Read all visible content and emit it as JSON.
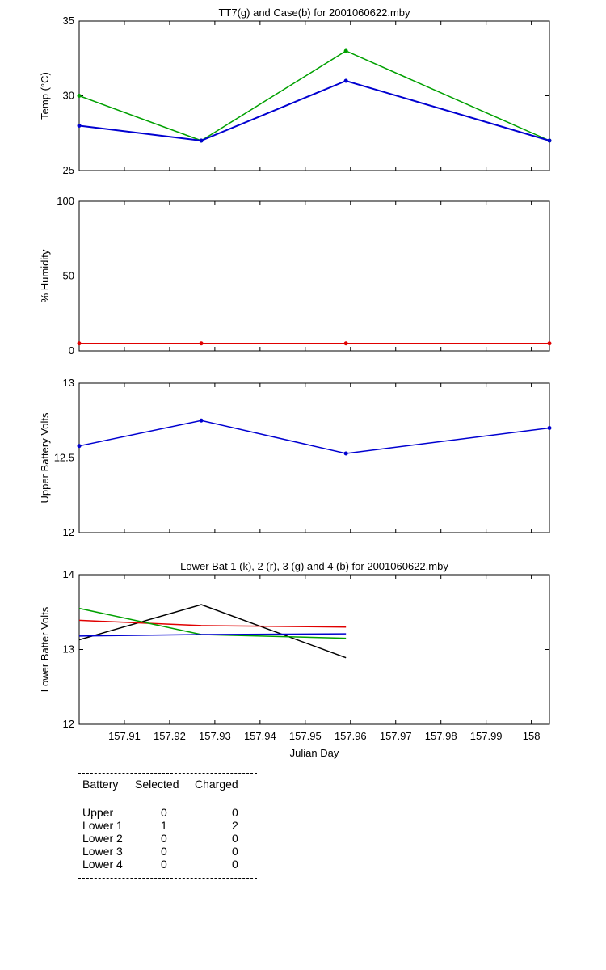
{
  "chart_data": [
    {
      "type": "line",
      "title": "TT7(g) and Case(b) for 2001060622.mby",
      "xlabel": "",
      "ylabel": "Temp  (°C)",
      "xlim": [
        157.9,
        158.004
      ],
      "ylim": [
        25,
        35
      ],
      "yticks": [
        "25",
        "30",
        "35"
      ],
      "x": [
        157.9,
        157.927,
        157.959,
        158.004
      ],
      "series": [
        {
          "color": "#00a000",
          "values": [
            30,
            27,
            33,
            27
          ]
        },
        {
          "color": "#0000d0",
          "values": [
            28,
            27,
            31,
            27
          ]
        }
      ]
    },
    {
      "type": "line",
      "title": "",
      "xlabel": "",
      "ylabel": "% Humidity",
      "xlim": [
        157.9,
        158.004
      ],
      "ylim": [
        0,
        100
      ],
      "yticks": [
        "0",
        "50",
        "100"
      ],
      "x": [
        157.9,
        157.927,
        157.959,
        158.004
      ],
      "series": [
        {
          "color": "#e00000",
          "values": [
            5,
            5,
            5,
            5
          ]
        }
      ]
    },
    {
      "type": "line",
      "title": "",
      "xlabel": "",
      "ylabel": "Upper Battery Volts",
      "xlim": [
        157.9,
        158.004
      ],
      "ylim": [
        12,
        13
      ],
      "yticks": [
        "12",
        "12.5",
        "13"
      ],
      "x": [
        157.9,
        157.927,
        157.959,
        158.004
      ],
      "series": [
        {
          "color": "#0000d0",
          "values": [
            12.58,
            12.75,
            12.53,
            12.7
          ]
        }
      ]
    },
    {
      "type": "line",
      "title": "Lower Bat 1 (k), 2 (r), 3 (g) and 4 (b) for 2001060622.mby",
      "xlabel": "Julian Day",
      "ylabel": "Lower Batter Volts",
      "xlim": [
        157.9,
        158.004
      ],
      "ylim": [
        12,
        14
      ],
      "yticks": [
        "12",
        "13",
        "14"
      ],
      "xticks": [
        "157.91",
        "157.92",
        "157.93",
        "157.94",
        "157.95",
        "157.96",
        "157.97",
        "157.98",
        "157.99",
        "158"
      ],
      "x": [
        157.9,
        157.927,
        157.959
      ],
      "series": [
        {
          "color": "#000000",
          "values": [
            13.13,
            13.6,
            12.89
          ]
        },
        {
          "color": "#e00000",
          "values": [
            13.39,
            13.32,
            13.3
          ]
        },
        {
          "color": "#00a000",
          "values": [
            13.55,
            13.2,
            13.15
          ]
        },
        {
          "color": "#0000d0",
          "values": [
            13.18,
            13.2,
            13.21
          ]
        }
      ]
    }
  ],
  "battery_table": {
    "headers": [
      "Battery",
      "Selected",
      "Charged"
    ],
    "rows": [
      {
        "battery": "Upper",
        "selected": "0",
        "charged": "0"
      },
      {
        "battery": "Lower 1",
        "selected": "1",
        "charged": "2"
      },
      {
        "battery": "Lower 2",
        "selected": "0",
        "charged": "0"
      },
      {
        "battery": "Lower 3",
        "selected": "0",
        "charged": "0"
      },
      {
        "battery": "Lower 4",
        "selected": "0",
        "charged": "0"
      }
    ]
  }
}
